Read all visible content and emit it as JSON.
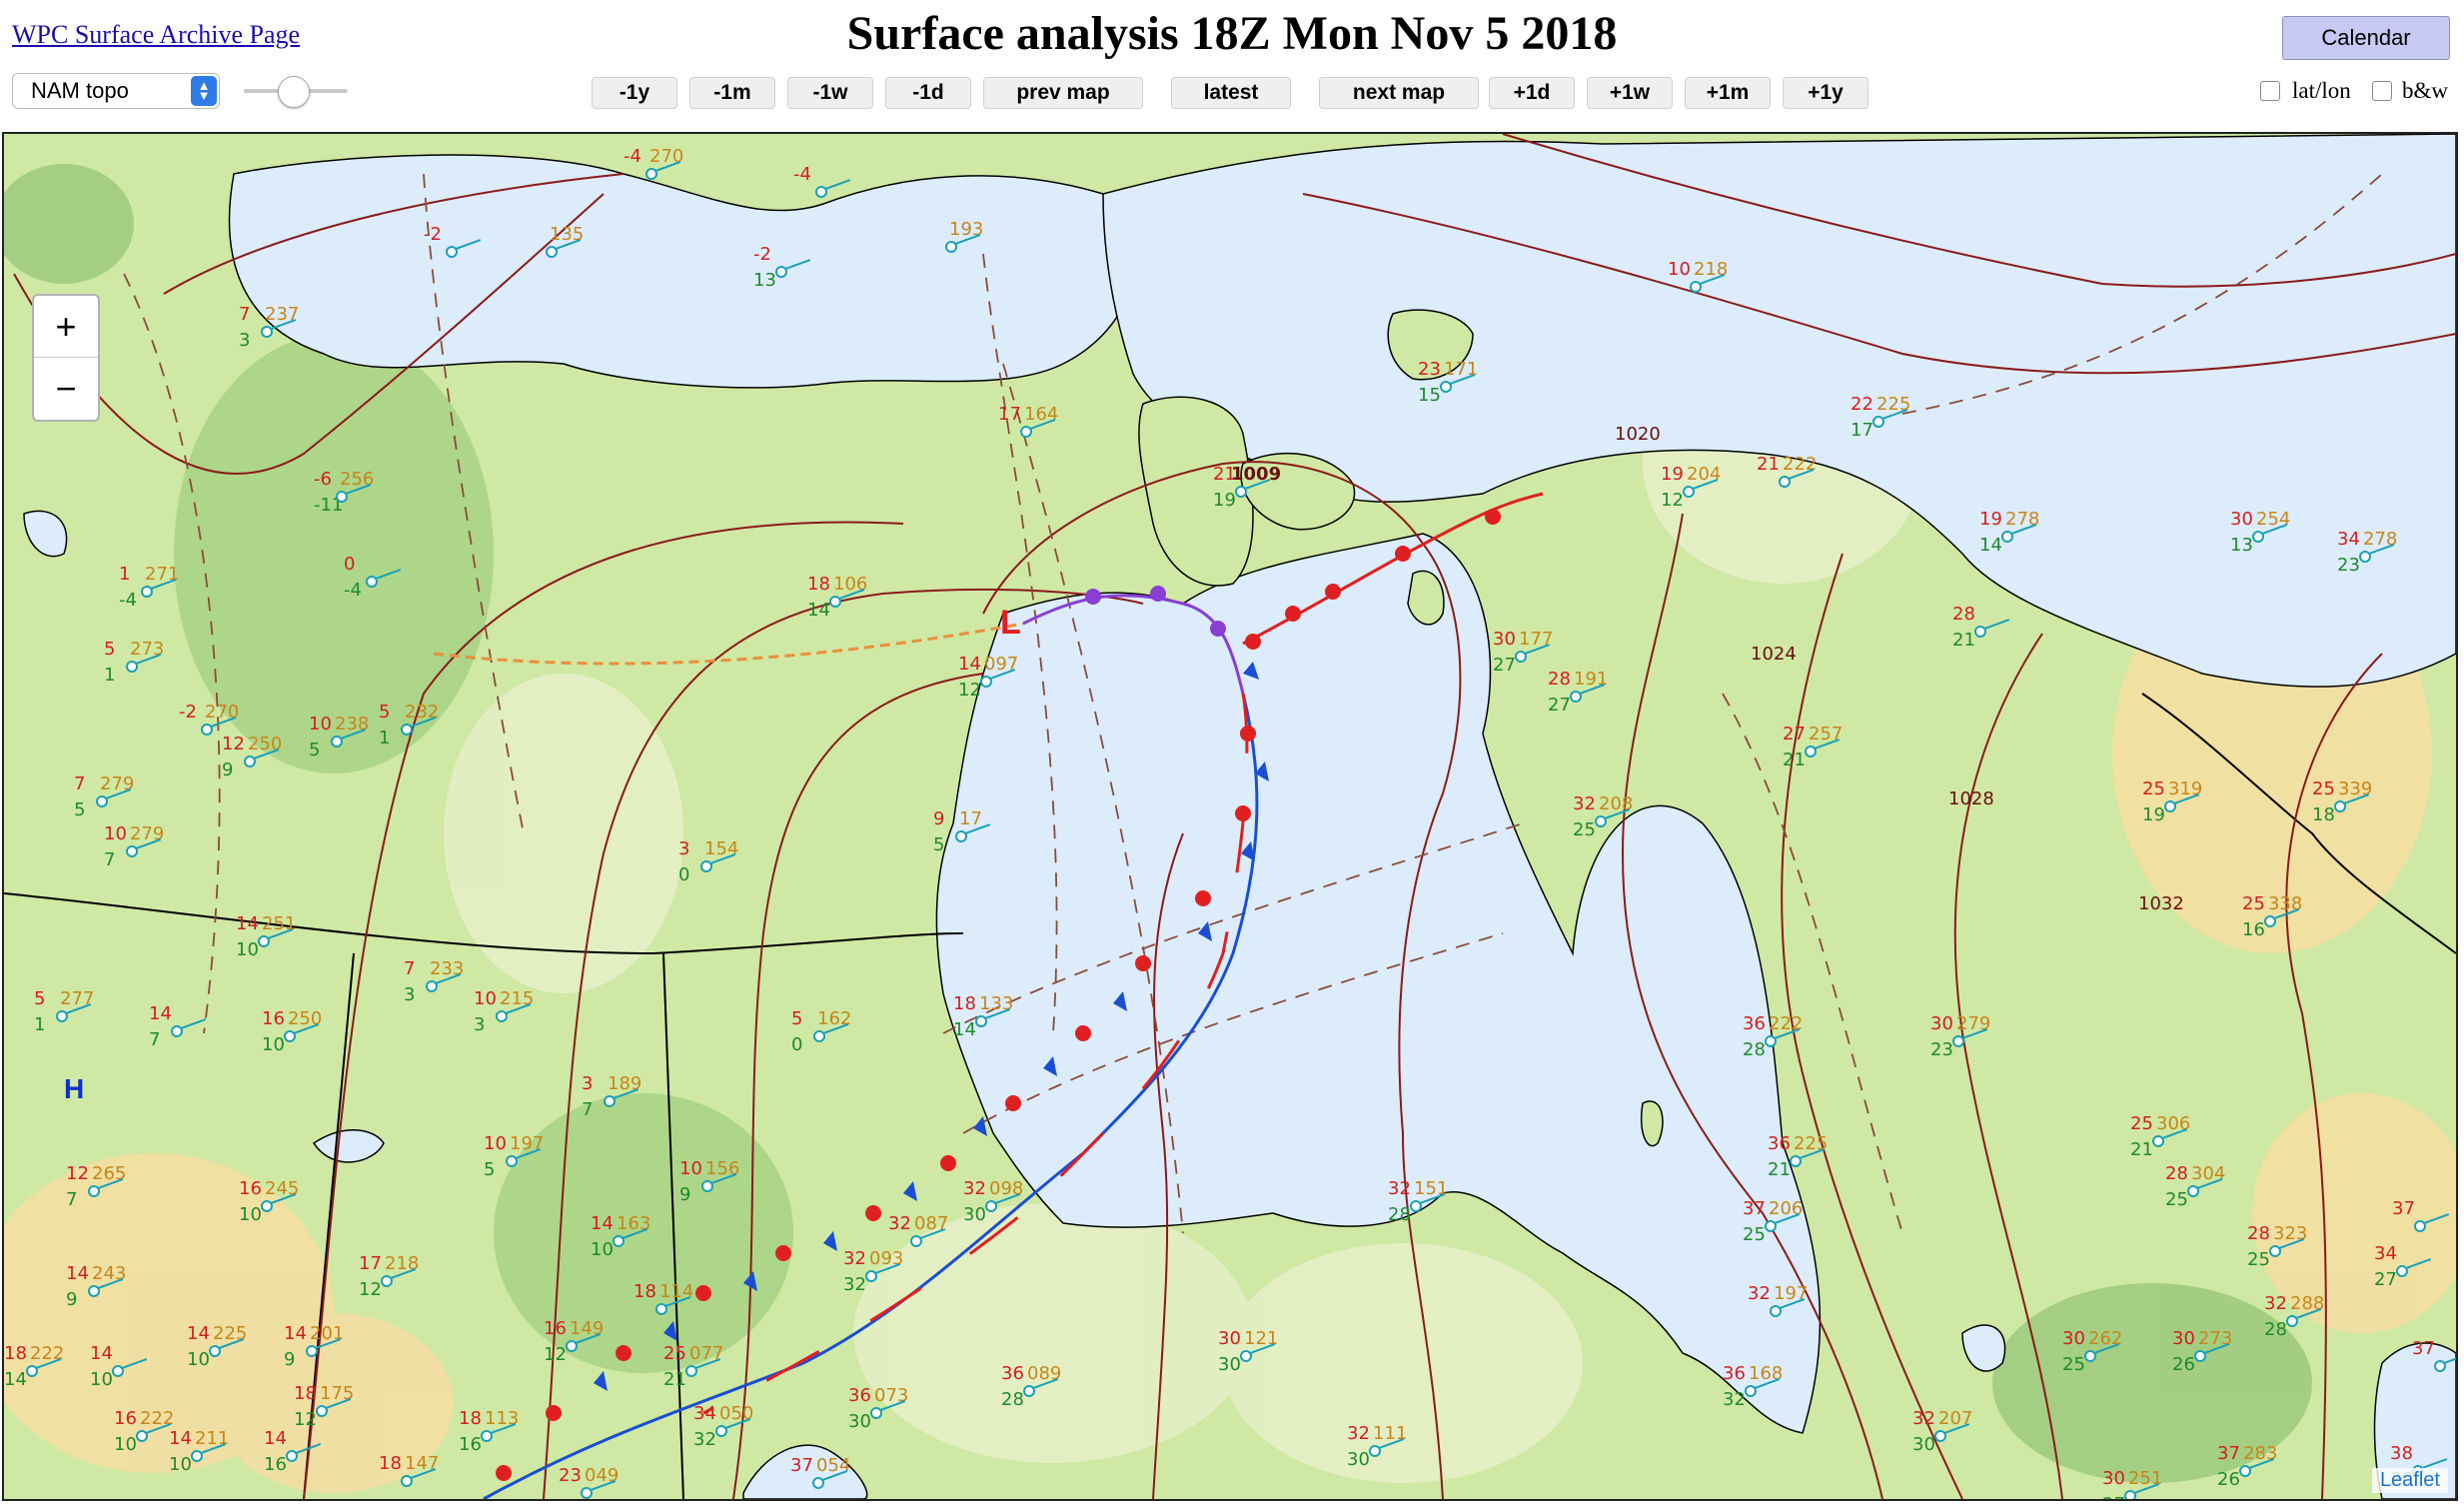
{
  "header": {
    "archive_link": "WPC Surface Archive Page",
    "title": "Surface analysis 18Z Mon Nov 5 2018",
    "calendar_label": "Calendar"
  },
  "controls": {
    "map_select_value": "NAM topo",
    "nav": [
      "-1y",
      "-1m",
      "-1w",
      "-1d",
      "prev map",
      "latest",
      "next map",
      "+1d",
      "+1w",
      "+1m",
      "+1y"
    ],
    "latlon_label": "lat/lon",
    "bw_label": "b&w"
  },
  "map": {
    "zoom_in": "+",
    "zoom_out": "−",
    "attribution": "Leaflet",
    "low_symbol": "L",
    "high_symbol": "H",
    "low_pressure": "1009",
    "isobars": [
      "1020",
      "1024",
      "1028",
      "1032"
    ],
    "stations": [
      {
        "t": "-4",
        "p": "270",
        "d": ""
      },
      {
        "t": "-2",
        "p": "",
        "d": ""
      },
      {
        "t": "",
        "p": "135",
        "d": ""
      },
      {
        "t": "-4",
        "p": "",
        "d": ""
      },
      {
        "t": "-2",
        "p": "",
        "d": "13"
      },
      {
        "t": "",
        "p": "193",
        "d": ""
      },
      {
        "t": "7",
        "p": "237",
        "d": "3"
      },
      {
        "t": "10",
        "p": "218",
        "d": ""
      },
      {
        "t": "23",
        "p": "171",
        "d": "15"
      },
      {
        "t": "22",
        "p": "225",
        "d": "17"
      },
      {
        "t": "17",
        "p": "164",
        "d": ""
      },
      {
        "t": "21",
        "p": "",
        "d": "19"
      },
      {
        "t": "19",
        "p": "204",
        "d": "12"
      },
      {
        "t": "21",
        "p": "222",
        "d": ""
      },
      {
        "t": "19",
        "p": "278",
        "d": "14"
      },
      {
        "t": "30",
        "p": "254",
        "d": "13"
      },
      {
        "t": "34",
        "p": "278",
        "d": "23"
      },
      {
        "t": "-6",
        "p": "256",
        "d": "-11"
      },
      {
        "t": "0",
        "p": "",
        "d": "-4"
      },
      {
        "t": "1",
        "p": "271",
        "d": "-4"
      },
      {
        "t": "18",
        "p": "106",
        "d": "14"
      },
      {
        "t": "14",
        "p": "097",
        "d": "12"
      },
      {
        "t": "30",
        "p": "177",
        "d": "27"
      },
      {
        "t": "28",
        "p": "191",
        "d": "27"
      },
      {
        "t": "28",
        "p": "",
        "d": "21"
      },
      {
        "t": "5",
        "p": "273",
        "d": "1"
      },
      {
        "t": "-2",
        "p": "270",
        "d": ""
      },
      {
        "t": "5",
        "p": "232",
        "d": "1"
      },
      {
        "t": "10",
        "p": "238",
        "d": "5"
      },
      {
        "t": "12",
        "p": "250",
        "d": "9"
      },
      {
        "t": "27",
        "p": "257",
        "d": "21"
      },
      {
        "t": "7",
        "p": "279",
        "d": "5"
      },
      {
        "t": "10",
        "p": "279",
        "d": "7"
      },
      {
        "t": "3",
        "p": "154",
        "d": "0"
      },
      {
        "t": "9",
        "p": "17",
        "d": "5"
      },
      {
        "t": "32",
        "p": "208",
        "d": "25"
      },
      {
        "t": "25",
        "p": "319",
        "d": "19"
      },
      {
        "t": "25",
        "p": "339",
        "d": "18"
      },
      {
        "t": "14",
        "p": "251",
        "d": "10"
      },
      {
        "t": "7",
        "p": "233",
        "d": "3"
      },
      {
        "t": "10",
        "p": "215",
        "d": "3"
      },
      {
        "t": "25",
        "p": "338",
        "d": "16"
      },
      {
        "t": "5",
        "p": "277",
        "d": "1"
      },
      {
        "t": "14",
        "p": "",
        "d": "7"
      },
      {
        "t": "16",
        "p": "250",
        "d": "10"
      },
      {
        "t": "5",
        "p": "162",
        "d": "0"
      },
      {
        "t": "18",
        "p": "133",
        "d": "14"
      },
      {
        "t": "36",
        "p": "222",
        "d": "28"
      },
      {
        "t": "30",
        "p": "279",
        "d": "23"
      },
      {
        "t": "3",
        "p": "189",
        "d": "7"
      },
      {
        "t": "10",
        "p": "197",
        "d": "5"
      },
      {
        "t": "10",
        "p": "156",
        "d": "9"
      },
      {
        "t": "25",
        "p": "306",
        "d": "21"
      },
      {
        "t": "36",
        "p": "225",
        "d": "21"
      },
      {
        "t": "12",
        "p": "265",
        "d": "7"
      },
      {
        "t": "16",
        "p": "245",
        "d": "10"
      },
      {
        "t": "32",
        "p": "098",
        "d": "30"
      },
      {
        "t": "32",
        "p": "151",
        "d": "28"
      },
      {
        "t": "28",
        "p": "304",
        "d": "25"
      },
      {
        "t": "14",
        "p": "163",
        "d": "10"
      },
      {
        "t": "32",
        "p": "087",
        "d": ""
      },
      {
        "t": "32",
        "p": "093",
        "d": "32"
      },
      {
        "t": "37",
        "p": "206",
        "d": "25"
      },
      {
        "t": "28",
        "p": "323",
        "d": "25"
      },
      {
        "t": "14",
        "p": "243",
        "d": "9"
      },
      {
        "t": "17",
        "p": "218",
        "d": "12"
      },
      {
        "t": "18",
        "p": "114",
        "d": ""
      },
      {
        "t": "32",
        "p": "197",
        "d": ""
      },
      {
        "t": "32",
        "p": "288",
        "d": "28"
      },
      {
        "t": "14",
        "p": "225",
        "d": "10"
      },
      {
        "t": "14",
        "p": "201",
        "d": "9"
      },
      {
        "t": "16",
        "p": "149",
        "d": "12"
      },
      {
        "t": "25",
        "p": "077",
        "d": "21"
      },
      {
        "t": "30",
        "p": "121",
        "d": "30"
      },
      {
        "t": "36",
        "p": "089",
        "d": "28"
      },
      {
        "t": "30",
        "p": "262",
        "d": "25"
      },
      {
        "t": "30",
        "p": "273",
        "d": "26"
      },
      {
        "t": "18",
        "p": "222",
        "d": "14"
      },
      {
        "t": "14",
        "p": "",
        "d": "10"
      },
      {
        "t": "18",
        "p": "175",
        "d": "12"
      },
      {
        "t": "34",
        "p": "050",
        "d": "32"
      },
      {
        "t": "36",
        "p": "073",
        "d": "30"
      },
      {
        "t": "36",
        "p": "168",
        "d": "32"
      },
      {
        "t": "16",
        "p": "222",
        "d": "10"
      },
      {
        "t": "14",
        "p": "211",
        "d": "10"
      },
      {
        "t": "14",
        "p": "",
        "d": "16"
      },
      {
        "t": "18",
        "p": "113",
        "d": "16"
      },
      {
        "t": "32",
        "p": "207",
        "d": "30"
      },
      {
        "t": "32",
        "p": "111",
        "d": "30"
      },
      {
        "t": "18",
        "p": "147",
        "d": ""
      },
      {
        "t": "23",
        "p": "049",
        "d": ""
      },
      {
        "t": "37",
        "p": "054",
        "d": ""
      },
      {
        "t": "37",
        "p": "283",
        "d": "26"
      },
      {
        "t": "30",
        "p": "251",
        "d": "27"
      },
      {
        "t": "37",
        "p": "",
        "d": ""
      },
      {
        "t": "38",
        "p": "",
        "d": "20"
      },
      {
        "t": "34",
        "p": "",
        "d": "27"
      },
      {
        "t": "37",
        "p": "",
        "d": ""
      }
    ]
  }
}
